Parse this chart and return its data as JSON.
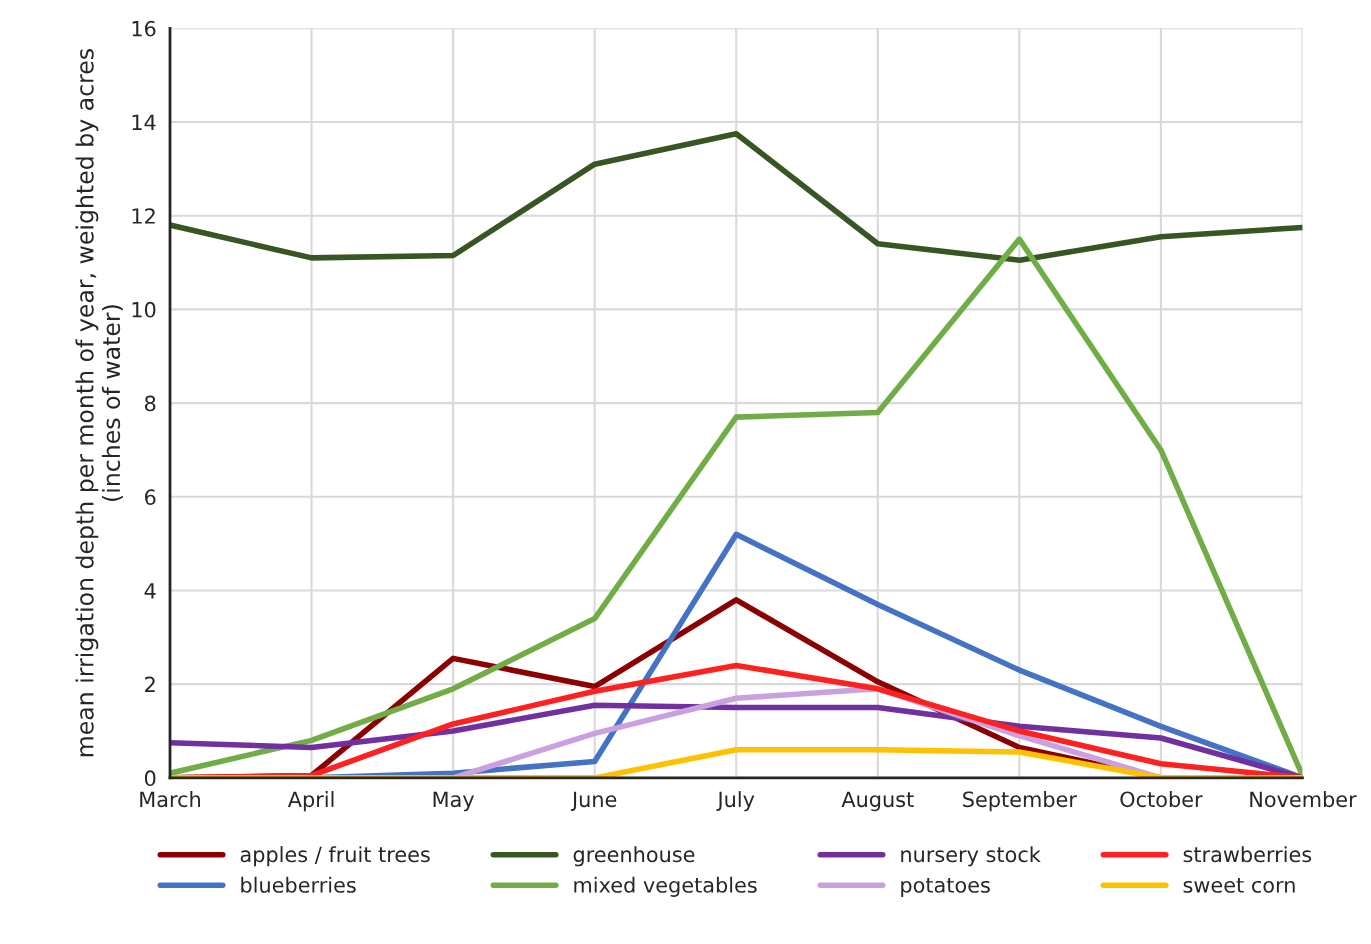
{
  "chart_data": {
    "type": "line",
    "ylabel": "mean irrigation depth per month of year, weighted by acres\n(inches of water)",
    "categories": [
      "March",
      "April",
      "May",
      "June",
      "July",
      "August",
      "September",
      "October",
      "November"
    ],
    "ylim": [
      0,
      16
    ],
    "yticks": [
      0,
      2,
      4,
      6,
      8,
      10,
      12,
      14,
      16
    ],
    "grid": true,
    "legend": "bottom",
    "marker": "none",
    "line_style": "solid",
    "series": [
      {
        "name": "apples / fruit trees",
        "color": "#8b0000",
        "values": [
          0,
          0.05,
          2.55,
          1.95,
          3.8,
          2.05,
          0.65,
          0,
          0
        ]
      },
      {
        "name": "blueberries",
        "color": "#4472c4",
        "values": [
          0,
          0,
          0.1,
          0.35,
          5.2,
          3.7,
          2.3,
          1.1,
          0
        ]
      },
      {
        "name": "greenhouse",
        "color": "#375623",
        "values": [
          11.8,
          11.1,
          11.15,
          13.1,
          13.75,
          11.4,
          11.05,
          11.55,
          11.75
        ]
      },
      {
        "name": "mixed vegetables",
        "color": "#70ad47",
        "values": [
          0.1,
          0.8,
          1.9,
          3.4,
          7.7,
          7.8,
          11.5,
          7.0,
          0.05
        ]
      },
      {
        "name": "nursery stock",
        "color": "#7030a0",
        "values": [
          0.75,
          0.65,
          1.0,
          1.55,
          1.5,
          1.5,
          1.1,
          0.85,
          0
        ]
      },
      {
        "name": "potatoes",
        "color": "#c9a0e0",
        "values": [
          0,
          0,
          0,
          0.95,
          1.7,
          1.9,
          0.9,
          0,
          0
        ]
      },
      {
        "name": "strawberries",
        "color": "#ff2020",
        "values": [
          0,
          0.05,
          1.15,
          1.85,
          2.4,
          1.9,
          1.0,
          0.3,
          0
        ]
      },
      {
        "name": "sweet corn",
        "color": "#ffc000",
        "values": [
          0,
          0,
          0,
          0,
          0.6,
          0.6,
          0.55,
          0,
          0
        ]
      }
    ]
  }
}
